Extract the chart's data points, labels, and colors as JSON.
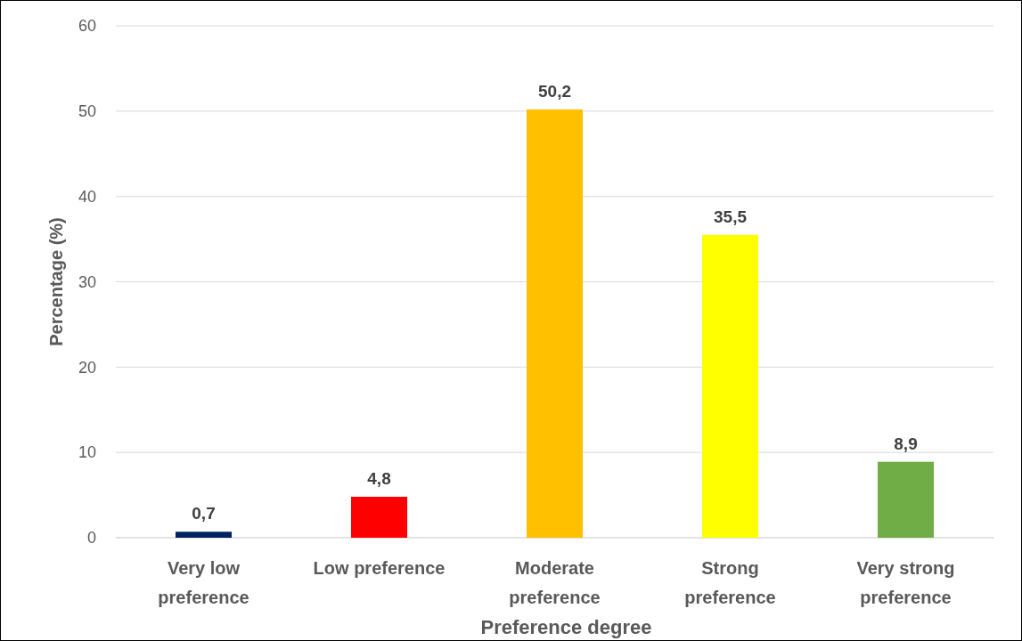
{
  "chart_data": {
    "type": "bar",
    "xlabel": "Preference degree",
    "ylabel": "Percentage (%)",
    "categories": [
      "Very low preference",
      "Low preference",
      "Moderate preference",
      "Strong preference",
      "Very strong preference"
    ],
    "values": [
      0.7,
      4.8,
      50.2,
      35.5,
      8.9
    ],
    "colors": [
      "#002060",
      "#ff0000",
      "#ffc000",
      "#ffff00",
      "#70ad47"
    ],
    "value_labels": [
      "0,7",
      "4,8",
      "50,2",
      "35,5",
      "8,9"
    ],
    "ylim": [
      0,
      60
    ],
    "yticks": [
      0,
      10,
      20,
      30,
      40,
      50,
      60
    ],
    "grid": "y"
  }
}
